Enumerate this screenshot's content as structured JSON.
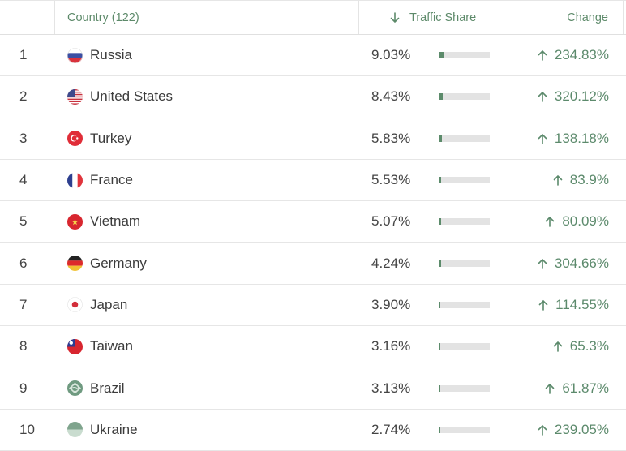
{
  "header": {
    "country_label": "Country (122)",
    "share_label": "Traffic Share",
    "change_label": "Change",
    "sort_icon": "arrow-down-icon"
  },
  "colors": {
    "accent": "#5c8b6b",
    "bar_bg": "#e3e3e3",
    "positive": "#5c8a6c"
  },
  "rows": [
    {
      "rank": "1",
      "country": "Russia",
      "flag": "russia-flag-icon",
      "share": "9.03%",
      "share_value": 9.03,
      "change": "234.83%"
    },
    {
      "rank": "2",
      "country": "United States",
      "flag": "usa-flag-icon",
      "share": "8.43%",
      "share_value": 8.43,
      "change": "320.12%"
    },
    {
      "rank": "3",
      "country": "Turkey",
      "flag": "turkey-flag-icon",
      "share": "5.83%",
      "share_value": 5.83,
      "change": "138.18%"
    },
    {
      "rank": "4",
      "country": "France",
      "flag": "france-flag-icon",
      "share": "5.53%",
      "share_value": 5.53,
      "change": "83.9%"
    },
    {
      "rank": "5",
      "country": "Vietnam",
      "flag": "vietnam-flag-icon",
      "share": "5.07%",
      "share_value": 5.07,
      "change": "80.09%"
    },
    {
      "rank": "6",
      "country": "Germany",
      "flag": "germany-flag-icon",
      "share": "4.24%",
      "share_value": 4.24,
      "change": "304.66%"
    },
    {
      "rank": "7",
      "country": "Japan",
      "flag": "japan-flag-icon",
      "share": "3.90%",
      "share_value": 3.9,
      "change": "114.55%"
    },
    {
      "rank": "8",
      "country": "Taiwan",
      "flag": "taiwan-flag-icon",
      "share": "3.16%",
      "share_value": 3.16,
      "change": "65.3%"
    },
    {
      "rank": "9",
      "country": "Brazil",
      "flag": "brazil-flag-icon",
      "share": "3.13%",
      "share_value": 3.13,
      "change": "61.87%"
    },
    {
      "rank": "10",
      "country": "Ukraine",
      "flag": "ukraine-flag-icon",
      "share": "2.74%",
      "share_value": 2.74,
      "change": "239.05%"
    }
  ]
}
